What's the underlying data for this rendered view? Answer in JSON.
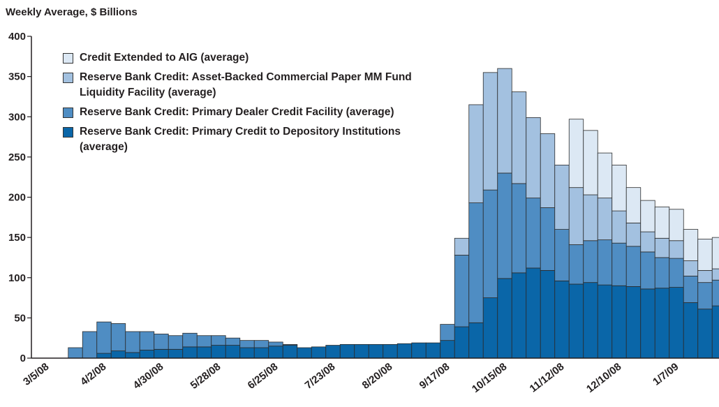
{
  "chart_data": {
    "type": "stacked-bar",
    "title": "Weekly Average, $ Billions",
    "categories": [
      "3/5/08",
      null,
      null,
      null,
      "4/2/08",
      null,
      null,
      null,
      "4/30/08",
      null,
      null,
      null,
      "5/28/08",
      null,
      null,
      null,
      "6/25/08",
      null,
      null,
      null,
      "7/23/08",
      null,
      null,
      null,
      "8/20/08",
      null,
      null,
      null,
      "9/17/08",
      null,
      null,
      null,
      "10/15/08",
      null,
      null,
      null,
      "11/12/08",
      null,
      null,
      null,
      "12/10/08",
      null,
      null,
      null,
      "1/7/09",
      null,
      null,
      null
    ],
    "series": [
      {
        "name": "Reserve Bank Credit: Primary Credit to Depository Institutions (average)",
        "color": "#0a66a8",
        "values": [
          0,
          0,
          0,
          0,
          6,
          9,
          7,
          10,
          11,
          11,
          14,
          14,
          16,
          16,
          13,
          13,
          15,
          16,
          13,
          14,
          16,
          17,
          17,
          17,
          17,
          18,
          19,
          19,
          22,
          39,
          44,
          75,
          99,
          106,
          112,
          109,
          96,
          92,
          94,
          91,
          90,
          89,
          86,
          87,
          88,
          69,
          61,
          65
        ]
      },
      {
        "name": "Reserve Bank Credit: Primary Dealer Credit Facility (average)",
        "color": "#4f8dc3",
        "values": [
          0,
          0,
          13,
          33,
          39,
          34,
          26,
          23,
          19,
          17,
          17,
          14,
          12,
          9,
          9,
          9,
          5,
          1,
          0,
          0,
          0,
          0,
          0,
          0,
          0,
          0,
          0,
          0,
          20,
          89,
          149,
          134,
          131,
          111,
          87,
          78,
          64,
          49,
          52,
          56,
          53,
          50,
          46,
          38,
          36,
          33,
          33,
          32
        ]
      },
      {
        "name": "Reserve Bank Credit: Asset-Backed Commercial Paper MM Fund Liquidity Facility (average)",
        "color": "#a3c1e0",
        "values": [
          0,
          0,
          0,
          0,
          0,
          0,
          0,
          0,
          0,
          0,
          0,
          0,
          0,
          0,
          0,
          0,
          0,
          0,
          0,
          0,
          0,
          0,
          0,
          0,
          0,
          0,
          0,
          0,
          0,
          21,
          122,
          146,
          130,
          114,
          100,
          92,
          80,
          71,
          57,
          52,
          40,
          29,
          25,
          24,
          22,
          19,
          15,
          14
        ]
      },
      {
        "name": "Credit Extended to AIG (average)",
        "color": "#dce8f4",
        "values": [
          0,
          0,
          0,
          0,
          0,
          0,
          0,
          0,
          0,
          0,
          0,
          0,
          0,
          0,
          0,
          0,
          0,
          0,
          0,
          0,
          0,
          0,
          0,
          0,
          0,
          0,
          0,
          0,
          0,
          0,
          0,
          0,
          0,
          0,
          0,
          0,
          0,
          85,
          80,
          56,
          57,
          44,
          39,
          39,
          39,
          39,
          39,
          39
        ]
      }
    ],
    "ylim": [
      0,
      400
    ],
    "yticks": [
      0,
      50,
      100,
      150,
      200,
      250,
      300,
      350,
      400
    ],
    "grid": false
  }
}
